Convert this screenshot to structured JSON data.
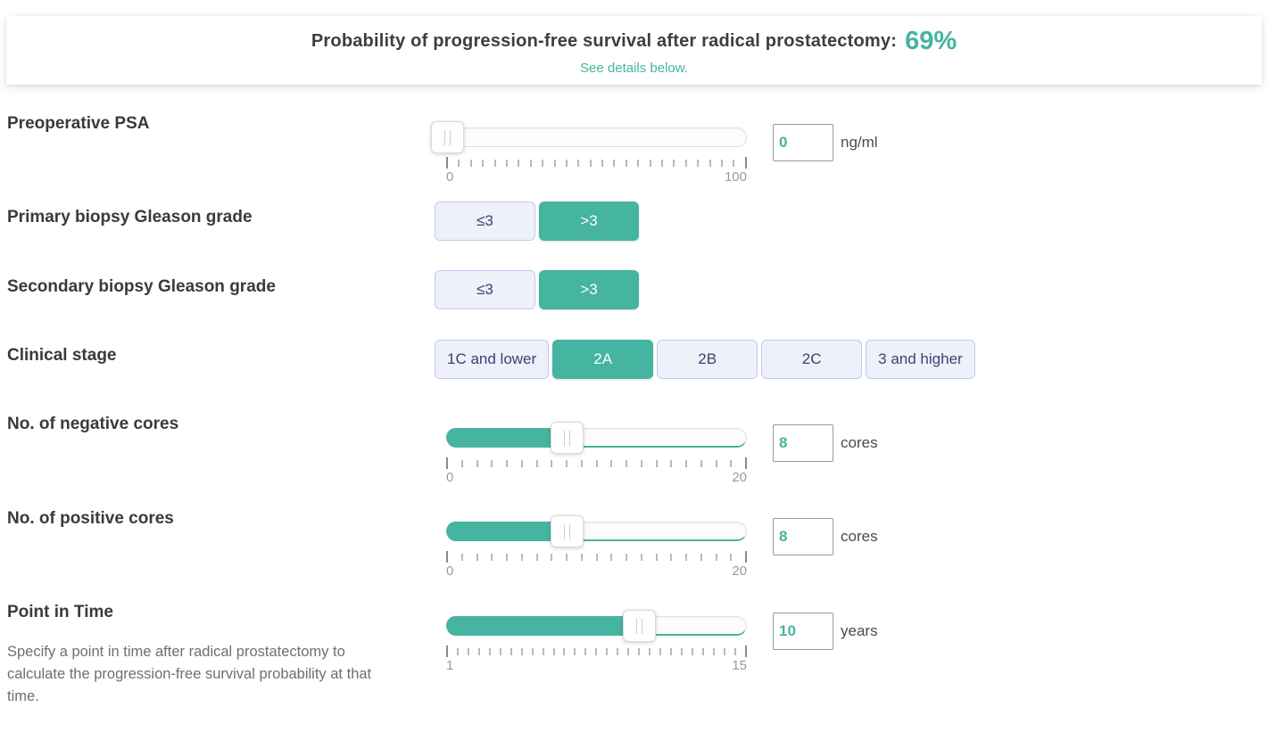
{
  "header": {
    "title": "Probability of progression-free survival after radical prostatectomy:",
    "value": "69%",
    "subtitle": "See details below."
  },
  "accent_color": "#45b4a0",
  "rows": {
    "psa": {
      "label": "Preoperative PSA",
      "value": "0",
      "unit": "ng/ml",
      "min": "0",
      "max": "100",
      "tick_count": 26
    },
    "primary_gleason": {
      "label": "Primary biopsy Gleason grade",
      "options": [
        {
          "label": "≤3",
          "selected": false
        },
        {
          "label": ">3",
          "selected": true
        }
      ]
    },
    "secondary_gleason": {
      "label": "Secondary biopsy Gleason grade",
      "options": [
        {
          "label": "≤3",
          "selected": false
        },
        {
          "label": ">3",
          "selected": true
        }
      ]
    },
    "clinical_stage": {
      "label": "Clinical stage",
      "options": [
        {
          "label": "1C and lower",
          "selected": false
        },
        {
          "label": "2A",
          "selected": true
        },
        {
          "label": "2B",
          "selected": false
        },
        {
          "label": "2C",
          "selected": false
        },
        {
          "label": "3 and higher",
          "selected": false
        }
      ]
    },
    "negative_cores": {
      "label": "No. of negative cores",
      "value": "8",
      "unit": "cores",
      "min": "0",
      "max": "20",
      "tick_count": 21
    },
    "positive_cores": {
      "label": "No. of positive cores",
      "value": "8",
      "unit": "cores",
      "min": "0",
      "max": "20",
      "tick_count": 21
    },
    "point_in_time": {
      "label": "Point in Time",
      "description": "Specify a point in time after radical prostatectomy to calculate the progression-free survival probability at that time.",
      "value": "10",
      "unit": "years",
      "min": "1",
      "max": "15",
      "tick_count": 29
    }
  }
}
